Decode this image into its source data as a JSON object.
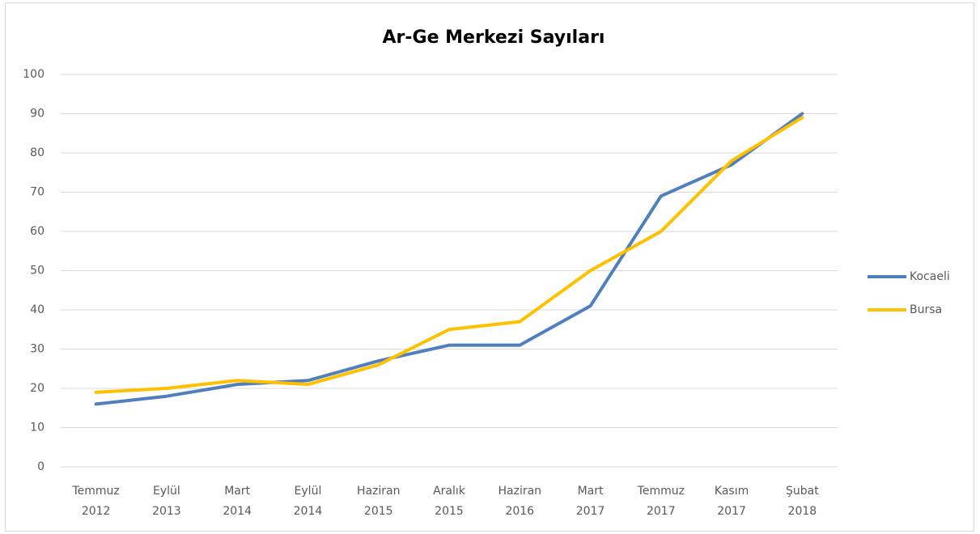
{
  "chart_data": {
    "type": "line",
    "title": "Ar-Ge Merkezi Sayıları",
    "categories": [
      "Temmuz 2012",
      "Eylül 2013",
      "Mart 2014",
      "Eylül 2014",
      "Haziran 2015",
      "Aralık 2015",
      "Haziran 2016",
      "Mart 2017",
      "Temmuz 2017",
      "Kasım 2017",
      "Şubat 2018"
    ],
    "series": [
      {
        "name": "Kocaeli",
        "color": "#4f7fbe",
        "values": [
          16,
          18,
          21,
          22,
          27,
          31,
          31,
          41,
          69,
          77,
          90
        ]
      },
      {
        "name": "Bursa",
        "color": "#ffc000",
        "values": [
          19,
          20,
          22,
          21,
          26,
          35,
          37,
          50,
          60,
          78,
          89
        ]
      }
    ],
    "ylim": [
      0,
      100
    ],
    "yticks": [
      0,
      10,
      20,
      30,
      40,
      50,
      60,
      70,
      80,
      90,
      100
    ],
    "grid": true,
    "legend": "right"
  }
}
